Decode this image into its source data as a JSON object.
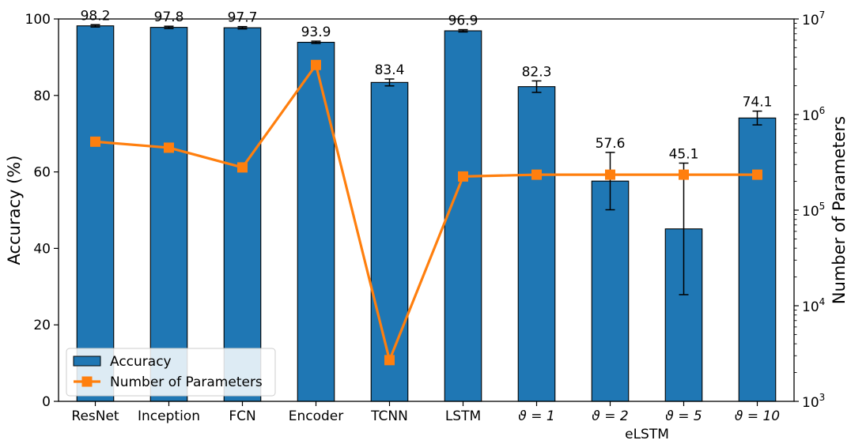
{
  "chart_data": {
    "type": "bar",
    "categories": [
      "ResNet",
      "Inception",
      "FCN",
      "Encoder",
      "TCNN",
      "LSTM",
      "ϑ = 1",
      "ϑ = 2",
      "ϑ = 5",
      "ϑ = 10"
    ],
    "category_group_label": "eLSTM",
    "group_members": [
      "ϑ = 1",
      "ϑ = 2",
      "ϑ = 5",
      "ϑ = 10"
    ],
    "series": [
      {
        "name": "Accuracy",
        "type": "bar",
        "axis": "left",
        "color": "#1f77b4",
        "values": [
          98.2,
          97.8,
          97.7,
          93.9,
          83.4,
          96.9,
          82.3,
          57.6,
          45.1,
          74.1
        ],
        "labels": [
          "98.2",
          "97.8",
          "97.7",
          "93.9",
          "83.4",
          "96.9",
          "82.3",
          "57.6",
          "45.1",
          "74.1"
        ],
        "error": [
          0.3,
          0.3,
          0.3,
          0.3,
          0.9,
          0.3,
          1.5,
          7.5,
          17.2,
          1.8
        ]
      },
      {
        "name": "Number of Parameters",
        "type": "line",
        "axis": "right",
        "color": "#ff7f0e",
        "values": [
          520000,
          450000,
          280000,
          3300000,
          2700,
          225000,
          235000,
          235000,
          235000,
          235000
        ]
      }
    ],
    "y_left": {
      "label": "Accuracy (%)",
      "lim": [
        0,
        100
      ],
      "ticks": [
        0,
        20,
        40,
        60,
        80,
        100
      ]
    },
    "y_right": {
      "label": "Number of Parameters",
      "scale": "log",
      "lim": [
        1000,
        10000000
      ],
      "ticks": [
        1000,
        10000,
        100000,
        1000000,
        10000000
      ],
      "tick_labels": [
        {
          "base": "10",
          "exp": "3"
        },
        {
          "base": "10",
          "exp": "4"
        },
        {
          "base": "10",
          "exp": "5"
        },
        {
          "base": "10",
          "exp": "6"
        },
        {
          "base": "10",
          "exp": "7"
        }
      ]
    },
    "legend": {
      "position": "lower-left",
      "entries": [
        "Accuracy",
        "Number of Parameters"
      ]
    },
    "grid": false
  }
}
